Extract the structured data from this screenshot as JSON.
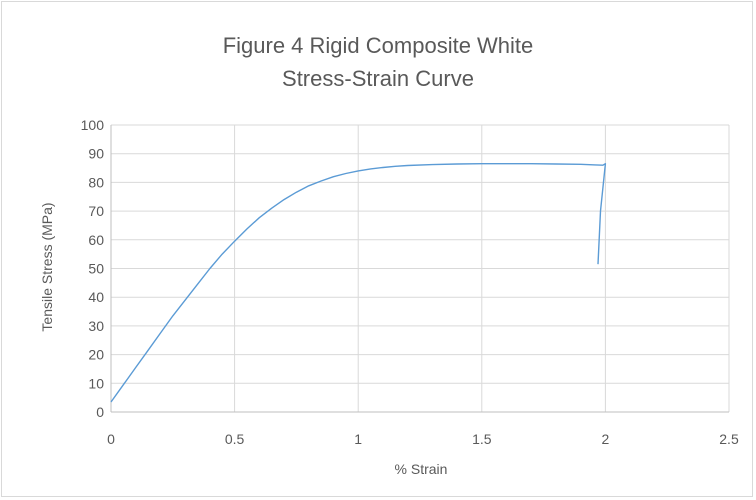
{
  "chart_data": {
    "type": "line",
    "title_lines": [
      "Figure 4 Rigid Composite White",
      "Stress-Strain Curve"
    ],
    "xlabel": "% Strain",
    "ylabel": "Tensile Stress (MPa)",
    "xlim": [
      0,
      2.5
    ],
    "ylim": [
      0,
      100
    ],
    "x_ticks": [
      0,
      0.5,
      1,
      1.5,
      2,
      2.5
    ],
    "x_tick_labels": [
      "0",
      "0.5",
      "1",
      "1.5",
      "2",
      "2.5"
    ],
    "y_ticks": [
      0,
      10,
      20,
      30,
      40,
      50,
      60,
      70,
      80,
      90,
      100
    ],
    "y_tick_labels": [
      "0",
      "10",
      "20",
      "30",
      "40",
      "50",
      "60",
      "70",
      "80",
      "90",
      "100"
    ],
    "grid": {
      "horizontal": true,
      "vertical": true
    },
    "legend": "none",
    "series": [
      {
        "color": "#5b9bd5",
        "x": [
          0,
          0.05,
          0.1,
          0.15,
          0.2,
          0.25,
          0.3,
          0.35,
          0.4,
          0.45,
          0.5,
          0.55,
          0.6,
          0.65,
          0.7,
          0.75,
          0.8,
          0.85,
          0.9,
          0.95,
          1.0,
          1.05,
          1.1,
          1.15,
          1.2,
          1.3,
          1.4,
          1.5,
          1.6,
          1.7,
          1.8,
          1.9,
          1.96,
          1.99,
          2.0,
          1.98,
          1.97
        ],
        "y": [
          3.5,
          9.5,
          15.5,
          21.5,
          27.5,
          33.5,
          39.0,
          44.5,
          50.0,
          55.0,
          59.5,
          63.8,
          67.7,
          71.0,
          74.0,
          76.6,
          78.8,
          80.5,
          82.0,
          83.1,
          84.0,
          84.7,
          85.2,
          85.6,
          85.9,
          86.2,
          86.4,
          86.5,
          86.5,
          86.5,
          86.4,
          86.3,
          86.1,
          86.0,
          86.5,
          70.0,
          51.5
        ]
      }
    ]
  }
}
